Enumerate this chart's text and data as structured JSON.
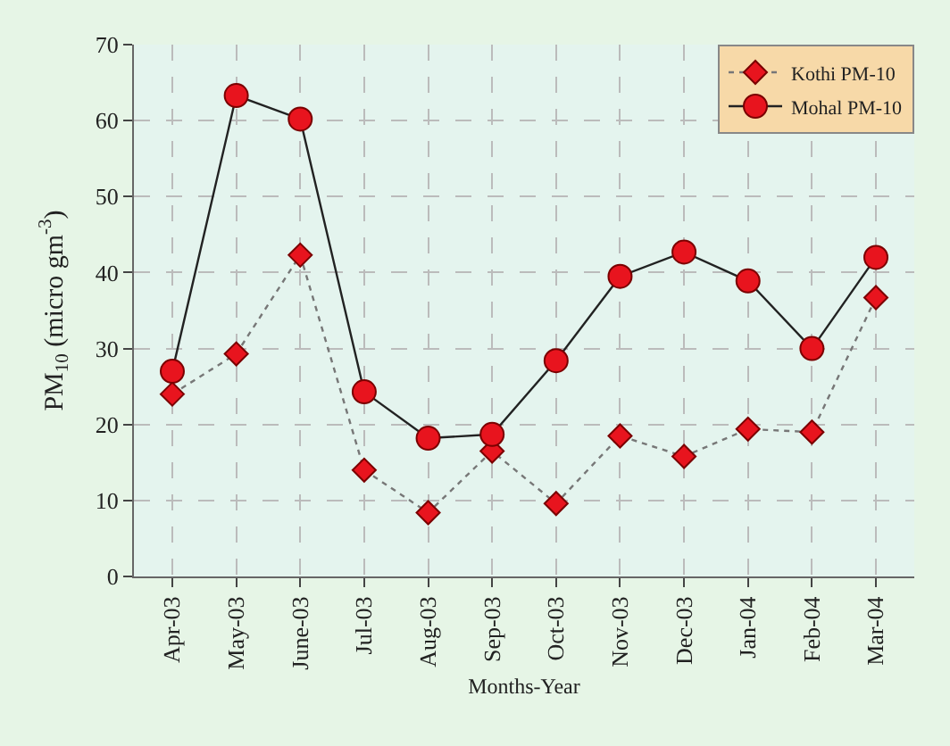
{
  "chart_data": {
    "type": "line",
    "xlabel": "Months-Year",
    "ylabel": "PM$_{10}$ (micro gm$^{-3}$)",
    "categories": [
      "Apr-03",
      "May-03",
      "June-03",
      "Jul-03",
      "Aug-03",
      "Sep-03",
      "Oct-03",
      "Nov-03",
      "Dec-03",
      "Jan-04",
      "Feb-04",
      "Mar-04"
    ],
    "series": [
      {
        "name": "Kothi PM-10",
        "color": "#e8141e",
        "line_style": "dotted",
        "marker": "diamond",
        "values": [
          24,
          29.3,
          42.3,
          14,
          8.4,
          16.5,
          9.6,
          18.5,
          15.8,
          19.4,
          19,
          36.7
        ]
      },
      {
        "name": "Mohal PM-10",
        "color": "#e8141e",
        "line_style": "solid",
        "marker": "circle",
        "values": [
          27,
          63.3,
          60.2,
          24.3,
          18.2,
          18.7,
          28.4,
          39.5,
          42.7,
          38.9,
          30,
          42
        ]
      }
    ],
    "ylim": [
      0,
      70
    ],
    "yticks": [
      0,
      10,
      20,
      30,
      40,
      50,
      60,
      70
    ],
    "grid": true,
    "legend": "top right"
  }
}
